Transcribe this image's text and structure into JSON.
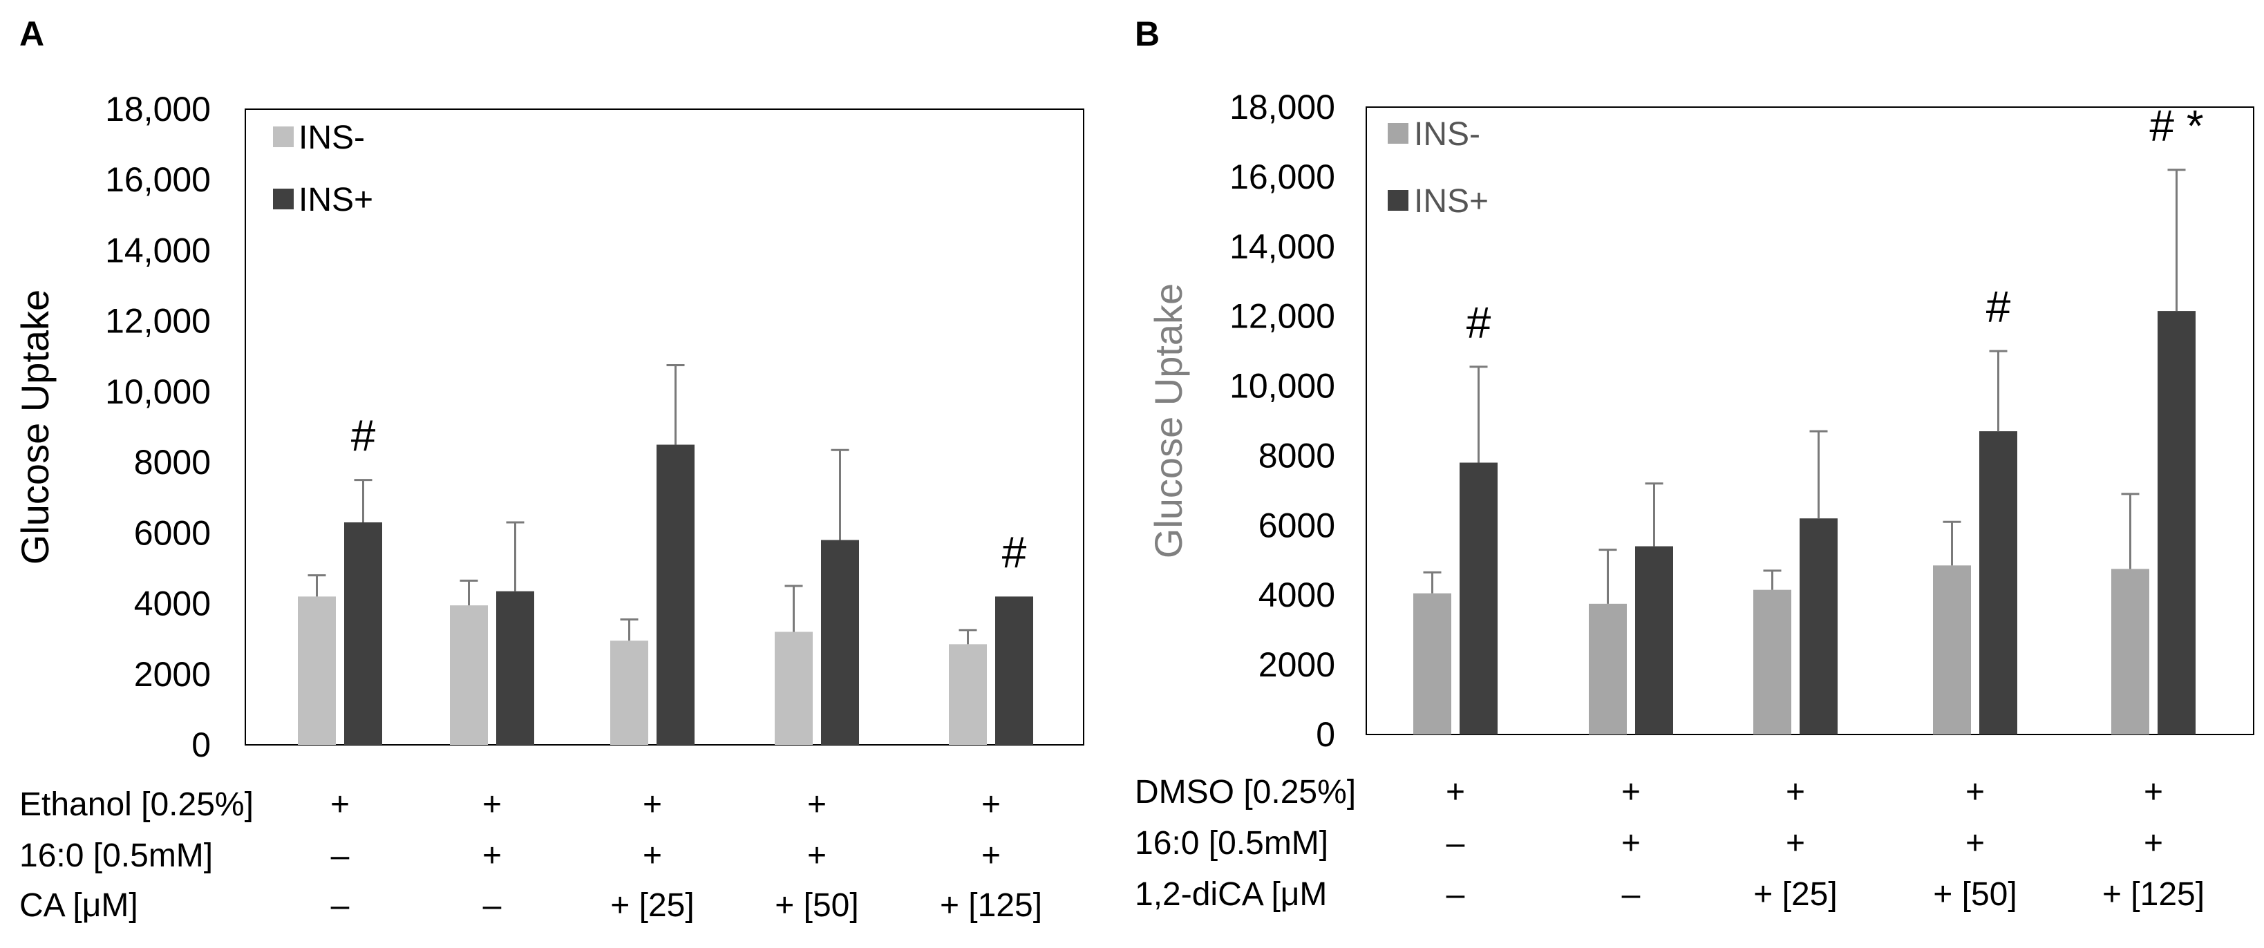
{
  "chart_data": [
    {
      "panel": "A",
      "type": "bar",
      "ylabel": "Glucose Uptake",
      "ylim": [
        0,
        18000
      ],
      "yticks": [
        "0",
        "2000",
        "4000",
        "6000",
        "8000",
        "10,000",
        "12,000",
        "14,000",
        "16,000",
        "18,000"
      ],
      "ylabel_color": "#000000",
      "legend_position": "top-left",
      "series": [
        {
          "name": "INS-",
          "color": "#c0c0c0",
          "values": [
            4200,
            3950,
            2950,
            3200,
            2850
          ],
          "errors": [
            600,
            700,
            600,
            1300,
            400
          ]
        },
        {
          "name": "INS+",
          "color": "#404040",
          "values": [
            6300,
            4350,
            8500,
            5800,
            4200
          ],
          "errors": [
            1200,
            1950,
            2250,
            2550,
            0
          ]
        }
      ],
      "annotations": [
        "#",
        "",
        "",
        "",
        "#"
      ],
      "conditions": [
        {
          "label": "Ethanol [0.25%]",
          "values": [
            "+",
            "+",
            "+",
            "+",
            "+"
          ]
        },
        {
          "label": "16:0 [0.5mM]",
          "values": [
            "–",
            "+",
            "+",
            "+",
            "+"
          ]
        },
        {
          "label": "CA [μM]",
          "values": [
            "–",
            "–",
            "+ [25]",
            "+ [50]",
            "+ [125]"
          ]
        }
      ]
    },
    {
      "panel": "B",
      "type": "bar",
      "ylabel": "Glucose Uptake",
      "ylim": [
        0,
        18000
      ],
      "yticks": [
        "0",
        "2000",
        "4000",
        "6000",
        "8000",
        "10,000",
        "12,000",
        "14,000",
        "16,000",
        "18,000"
      ],
      "ylabel_color": "#808080",
      "legend_position": "top-left",
      "series": [
        {
          "name": "INS-",
          "color": "#a6a6a6",
          "values": [
            4050,
            3750,
            4150,
            4850,
            4750
          ],
          "errors": [
            600,
            1550,
            550,
            1250,
            2150
          ]
        },
        {
          "name": "INS+",
          "color": "#404040",
          "values": [
            7800,
            5400,
            6200,
            8700,
            12150
          ],
          "errors": [
            2750,
            1800,
            2500,
            2300,
            4050
          ]
        }
      ],
      "annotations": [
        "#",
        "",
        "",
        "#",
        "# *"
      ],
      "conditions": [
        {
          "label": "DMSO [0.25%]",
          "values": [
            "+",
            "+",
            "+",
            "+",
            "+"
          ]
        },
        {
          "label": "16:0 [0.5mM]",
          "values": [
            "–",
            "+",
            "+",
            "+",
            "+"
          ]
        },
        {
          "label": "1,2-diCA [μM",
          "values": [
            "–",
            "–",
            "+ [25]",
            "+ [50]",
            "+ [125]"
          ]
        }
      ]
    }
  ]
}
